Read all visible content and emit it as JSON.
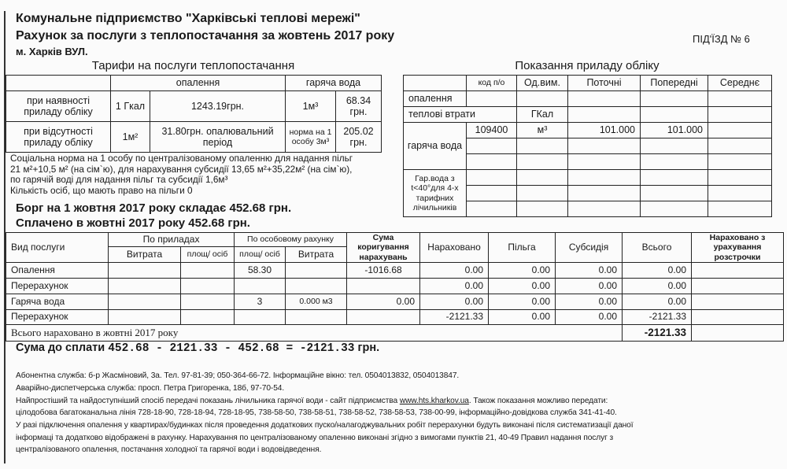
{
  "header": {
    "company": "Комунальне підприємство \"Харківські теплові мережі\"",
    "bill_title": "Рахунок за послуги з теплопостачання за жовтень 2017 року",
    "address": "м. Харків ВУЛ.",
    "entrance": "ПІД'ЇЗД № 6"
  },
  "tariffs": {
    "caption": "Тарифи на послуги теплопостачання",
    "col_heating": "опалення",
    "col_hot_water": "гаряча вода",
    "rows": [
      {
        "label": "при наявності приладу обліку",
        "heat_unit": "1 Гкал",
        "heat_price": "1243.19грн.",
        "water_unit": "1м³",
        "water_price": "68.34 грн."
      },
      {
        "label": "при відсутності приладу обліку",
        "heat_unit": "1м²",
        "heat_price": "31.80грн. опалювальний період",
        "water_unit": "норма на 1 особу 3м³",
        "water_price": "205.02 грн."
      }
    ]
  },
  "notes": [
    "Соціальна норма на 1 особу по централізованому опаленню для надання пільг",
    "21 м²+10,5 м² (на сім`ю), для нарахування субсидії 13,65 м²+35,22м² (на сім`ю),",
    "по гарячій воді для надання пільг  та субсидії 1,6м³",
    "Кількість осіб, що мають право на пільги 0"
  ],
  "debt": "Борг на 1 жовтня 2017 року складає 452.68 грн.",
  "paid": "Сплачено в жовтні 2017 року 452.68 грн.",
  "meter": {
    "caption": "Показання приладу обліку",
    "headers": [
      "",
      "код п/о",
      "Од.вим.",
      "Поточні",
      "Попередні",
      "Середнє"
    ],
    "heating": "опалення",
    "heat_loss": "теплові втрати",
    "heat_loss_unit": "ГКал",
    "hot_water": "гаряча вода",
    "hot_water_row": {
      "code": "109400",
      "unit": "м³",
      "current": "101.000",
      "previous": "101.000"
    },
    "low_temp": "Гар.вода з t<40°для 4-х тарифних лічильників"
  },
  "charges": {
    "headers": {
      "service": "Вид послуги",
      "by_meter": "По приладах",
      "consumption": "Витрата",
      "area_persons": "площ/ осіб",
      "personal": "По особовому рахунку",
      "correction": "Сума коригування нарахувань",
      "accrued": "Нараховано",
      "benefit": "Пільга",
      "subsidy": "Субсидія",
      "total": "Всього",
      "installment": "Нараховано з урахування розстрочки"
    },
    "rows": [
      {
        "service": "Опалення",
        "m_cons": "",
        "m_area": "",
        "p_area": "58.30",
        "p_cons": "",
        "corr": "-1016.68",
        "accrued": "0.00",
        "benefit": "0.00",
        "subsidy": "0.00",
        "total": "0.00",
        "inst": ""
      },
      {
        "service": "Перерахунок",
        "m_cons": "",
        "m_area": "",
        "p_area": "",
        "p_cons": "",
        "corr": "",
        "accrued": "0.00",
        "benefit": "0.00",
        "subsidy": "0.00",
        "total": "0.00",
        "inst": ""
      },
      {
        "service": "Гаряча вода",
        "m_cons": "",
        "m_area": "",
        "p_area": "3",
        "p_cons": "0.000 м3",
        "corr": "0.00",
        "accrued": "0.00",
        "benefit": "0.00",
        "subsidy": "0.00",
        "total": "0.00",
        "inst": ""
      },
      {
        "service": "Перерахунок",
        "m_cons": "",
        "m_area": "",
        "p_area": "",
        "p_cons": "",
        "corr": "",
        "accrued": "-2121.33",
        "benefit": "0.00",
        "subsidy": "0.00",
        "total": "-2121.33",
        "inst": ""
      }
    ],
    "total_label": "Всього нараховано в жовтні 2017 року",
    "total_value": "-2121.33"
  },
  "amount_due": {
    "label": "Сума до сплати",
    "formula": "452.68 - 2121.33 - 452.68 = -2121.33",
    "currency": "грн."
  },
  "footer": {
    "line1": "Абонентна служба:  б-р Жасміновий, 3а. Тел.  97-81-39; 050-364-66-72. Інформаційне вікно: тел.  0504013832, 0504013847.",
    "line2": "Аварійно-диспетчерська служба: просп. Петра Григоренка, 18б, 97-70-54.",
    "line3a": "Найпростіший та найдоступніший спосіб передачі показань лічильника гарячої води - сайт підприємства ",
    "website": "www.hts.kharkov.ua",
    "line3b": ". Також показання можливо передати:",
    "line4": "цілодобова багатоканальна лінія   728-18-90, 728-18-94, 728-18-95, 738-58-50, 738-58-51, 738-58-52, 738-58-53, 738-00-99, інформаційно-довідкова служба 341-41-40.",
    "line5": "У разі підключення опалення у квартирах/будинках після проведення додаткових пуско/налагоджувальних робіт перерахунки будуть виконані після систематизації даної",
    "line6": "інформаці та додатково відображені в рахунку. Нарахування по централізованому опаленню виконані згідно з вимогами пунктів  21, 40-49 Правил надання послуг з",
    "line7": "централізованого опалення, постачання холодної та гарячої води і водовідведення."
  }
}
